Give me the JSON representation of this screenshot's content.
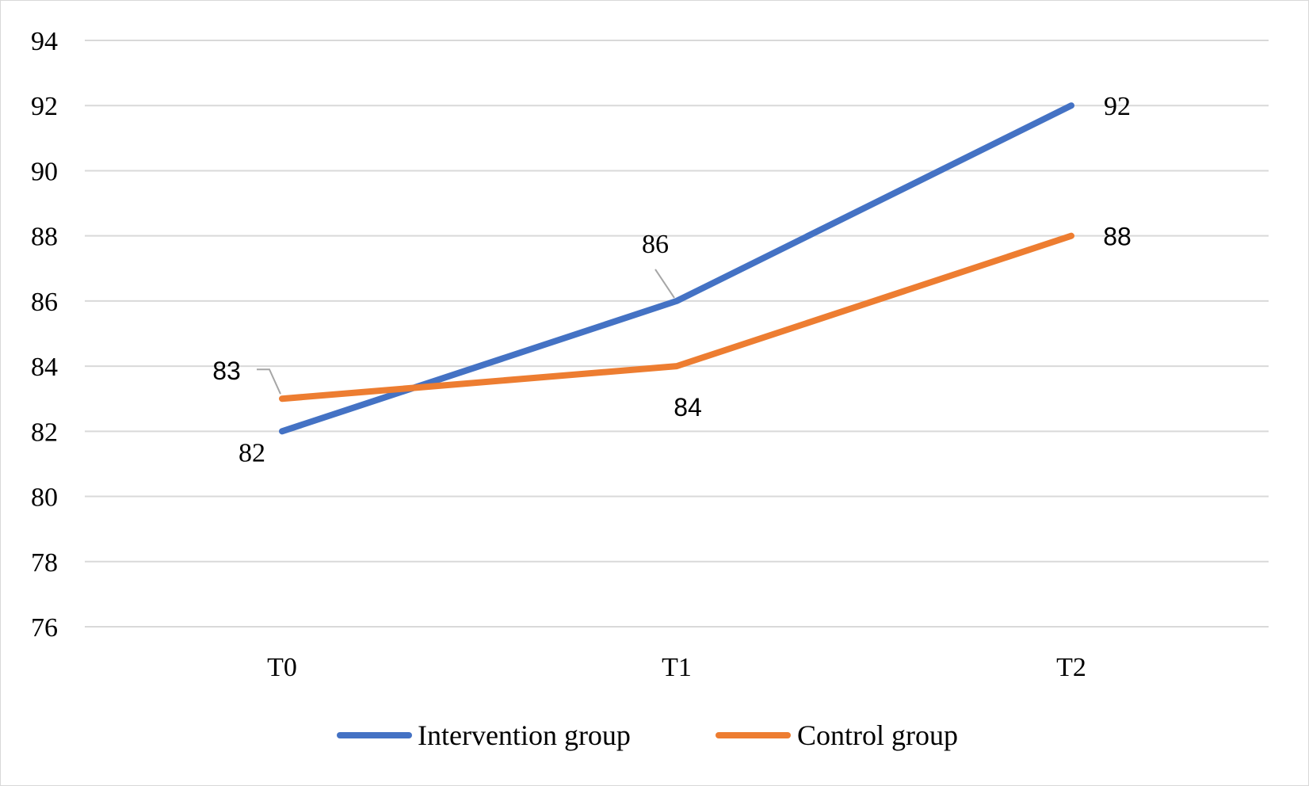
{
  "chart_data": {
    "type": "line",
    "title": "",
    "xlabel": "",
    "ylabel": "",
    "categories": [
      "T0",
      "T1",
      "T2"
    ],
    "ylim": [
      76,
      94
    ],
    "yticks": [
      "76",
      "78",
      "80",
      "82",
      "84",
      "86",
      "88",
      "90",
      "92",
      "94"
    ],
    "grid": true,
    "legend_position": "bottom",
    "series": [
      {
        "name": "Intervention group",
        "color": "#4472C4",
        "values": [
          82,
          86,
          92
        ],
        "labels": [
          "82",
          "86",
          "92"
        ]
      },
      {
        "name": "Control group",
        "color": "#ED7D31",
        "values": [
          83,
          84,
          88
        ],
        "labels": [
          "83",
          "84",
          "88"
        ]
      }
    ]
  }
}
